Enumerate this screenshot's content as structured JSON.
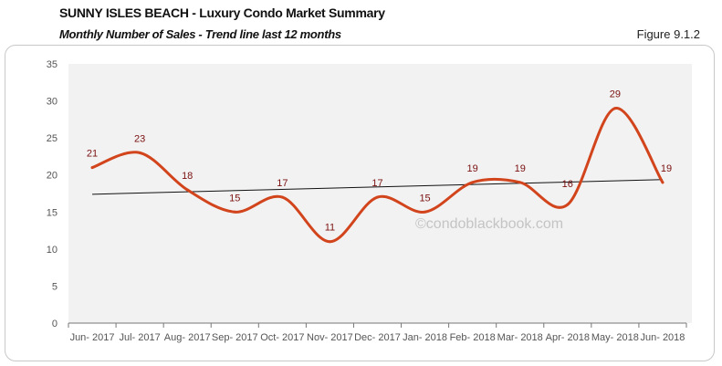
{
  "header": {
    "title": "SUNNY ISLES BEACH - Luxury Condo Market Summary",
    "subtitle": "Monthly Number of Sales - Trend line last 12 months",
    "figure": "Figure 9.1.2"
  },
  "watermark": "©condoblackbook.com",
  "chart_data": {
    "type": "line",
    "categories": [
      "Jun- 2017",
      "Jul- 2017",
      "Aug- 2017",
      "Sep- 2017",
      "Oct- 2017",
      "Nov- 2017",
      "Dec- 2017",
      "Jan- 2018",
      "Feb- 2018",
      "Mar- 2018",
      "Apr- 2018",
      "May- 2018",
      "Jun- 2018"
    ],
    "values": [
      21,
      23,
      18,
      15,
      17,
      11,
      17,
      15,
      19,
      19,
      16,
      29,
      19
    ],
    "ylim": [
      0,
      35
    ],
    "yticks": [
      0,
      5,
      10,
      15,
      20,
      25,
      30,
      35
    ],
    "trendline": "linear",
    "grid": false,
    "line_color": "#d2441c",
    "trend_color": "#111111",
    "label_color": "#7b1010",
    "plot_bg": "#f2f2f2"
  }
}
